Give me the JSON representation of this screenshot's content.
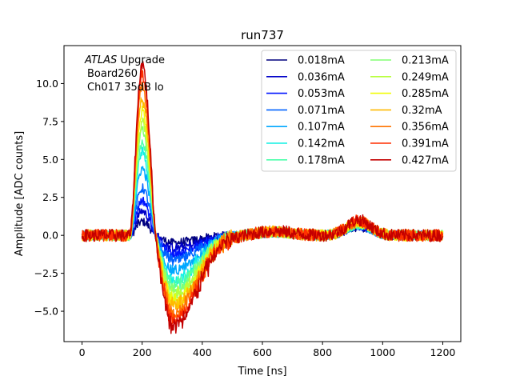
{
  "chart_data": {
    "type": "line",
    "title": "run737",
    "xlabel": "Time [ns]",
    "ylabel": "Amplitude [ADC counts]",
    "xlim": [
      -60,
      1260
    ],
    "ylim": [
      -7.0,
      12.5
    ],
    "xticks": [
      0,
      200,
      400,
      600,
      800,
      1000,
      1200
    ],
    "xtick_labels": [
      "0",
      "200",
      "400",
      "600",
      "800",
      "1000",
      "1200"
    ],
    "yticks": [
      -5.0,
      -2.5,
      0.0,
      2.5,
      5.0,
      7.5,
      10.0
    ],
    "ytick_labels": [
      "−5.0",
      "−2.5",
      "0.0",
      "2.5",
      "5.0",
      "7.5",
      "10.0"
    ],
    "annotation": {
      "line1_italic": "ATLAS",
      "line1_rest": " Upgrade",
      "line2": "Board260",
      "line3": "Ch017 35dB lo"
    },
    "legend_position": "upper right, two columns",
    "pulse_shape": {
      "t_rise": 160,
      "t_peak": 200,
      "t_cross": 245,
      "t_min": 305,
      "undershoot_ratio": 0.53,
      "noise_amplitude": 0.35
    },
    "series": [
      {
        "name": "0.018mA",
        "color": "#00007f",
        "peak": 0.9
      },
      {
        "name": "0.036mA",
        "color": "#0000c8",
        "peak": 1.6
      },
      {
        "name": "0.053mA",
        "color": "#0014ff",
        "peak": 2.3
      },
      {
        "name": "0.071mA",
        "color": "#0062ff",
        "peak": 3.1
      },
      {
        "name": "0.107mA",
        "color": "#00a8ff",
        "peak": 4.4
      },
      {
        "name": "0.142mA",
        "color": "#12f0e4",
        "peak": 5.5
      },
      {
        "name": "0.178mA",
        "color": "#4cffaa",
        "peak": 6.1
      },
      {
        "name": "0.213mA",
        "color": "#82ff74",
        "peak": 6.9
      },
      {
        "name": "0.249mA",
        "color": "#b8ff3e",
        "peak": 7.5
      },
      {
        "name": "0.285mA",
        "color": "#f1fc06",
        "peak": 8.2
      },
      {
        "name": "0.32mA",
        "color": "#ffb900",
        "peak": 8.9
      },
      {
        "name": "0.356mA",
        "color": "#ff7300",
        "peak": 9.8
      },
      {
        "name": "0.391mA",
        "color": "#ff2f00",
        "peak": 10.6
      },
      {
        "name": "0.427mA",
        "color": "#c40000",
        "peak": 11.3
      }
    ]
  }
}
